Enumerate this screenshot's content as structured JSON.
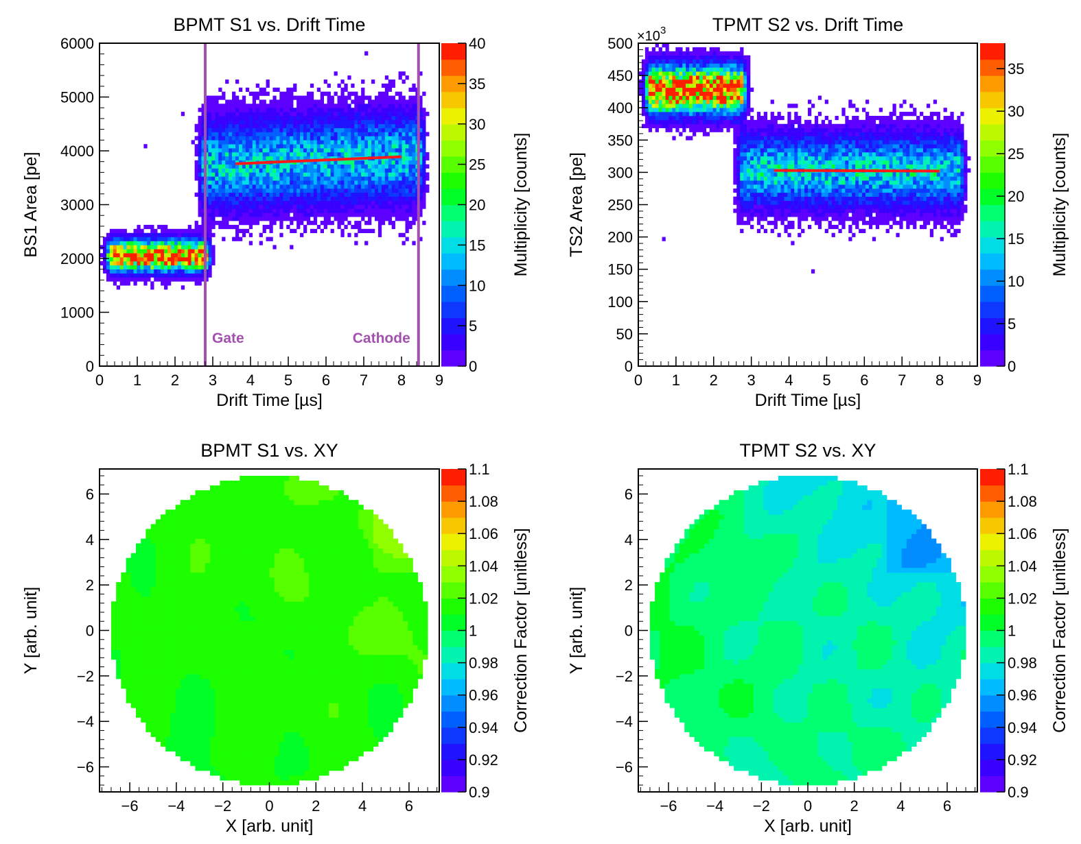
{
  "chart_data": [
    {
      "type": "heatmap",
      "title": "BPMT S1 vs. Drift Time",
      "xlabel": "Drift Time [µs]",
      "ylabel": "BS1 Area [pe]",
      "zlabel": "Multiplicity [counts]",
      "xlim": [
        0,
        9
      ],
      "ylim": [
        0,
        6000
      ],
      "zlim": [
        0,
        40
      ],
      "x_ticks": [
        "0",
        "1",
        "2",
        "3",
        "4",
        "5",
        "6",
        "7",
        "8",
        "9"
      ],
      "y_ticks": [
        "0",
        "1000",
        "2000",
        "3000",
        "4000",
        "5000",
        "6000"
      ],
      "z_ticks": [
        "0",
        "5",
        "10",
        "15",
        "20",
        "25",
        "30",
        "35",
        "40"
      ],
      "fit_line": {
        "x": [
          3.6,
          8.0
        ],
        "y": [
          3760,
          3890
        ]
      },
      "boundaries": [
        {
          "label": "Gate",
          "x": 2.8
        },
        {
          "label": "Cathode",
          "x": 8.45
        }
      ],
      "clusters": [
        {
          "x_range": [
            0.35,
            2.75
          ],
          "y_center": 2050,
          "y_sigma": 170,
          "peak_counts": 40
        },
        {
          "x_range": [
            2.8,
            8.45
          ],
          "y_center": 3800,
          "y_sigma": 480,
          "peak_counts": 14
        }
      ]
    },
    {
      "type": "heatmap",
      "title": "TPMT S2 vs. Drift Time",
      "xlabel": "Drift Time [µs]",
      "ylabel": "TS2 Area [pe]",
      "zlabel": "Multiplicity [counts]",
      "y_multiplier": "×10",
      "y_multiplier_exp": "3",
      "xlim": [
        0,
        9
      ],
      "ylim": [
        0,
        500
      ],
      "zlim": [
        0,
        38
      ],
      "x_ticks": [
        "0",
        "1",
        "2",
        "3",
        "4",
        "5",
        "6",
        "7",
        "8",
        "9"
      ],
      "y_ticks": [
        "0",
        "50",
        "100",
        "150",
        "200",
        "250",
        "300",
        "350",
        "400",
        "450",
        "500"
      ],
      "z_ticks": [
        "0",
        "5",
        "10",
        "15",
        "20",
        "25",
        "30",
        "35"
      ],
      "fit_line": {
        "x": [
          3.6,
          8.0
        ],
        "y": [
          303,
          302
        ]
      },
      "clusters": [
        {
          "x_range": [
            0.35,
            2.7
          ],
          "y_center": 428,
          "y_sigma": 22,
          "peak_counts": 38
        },
        {
          "x_range": [
            2.8,
            8.5
          ],
          "y_center": 300,
          "y_sigma": 33,
          "peak_counts": 14
        }
      ]
    },
    {
      "type": "heatmap",
      "title": "BPMT S1 vs. XY",
      "xlabel": "X [arb. unit]",
      "ylabel": "Y [arb. unit]",
      "zlabel": "Correction Factor [unitless]",
      "xlim": [
        -7.3,
        7.3
      ],
      "ylim": [
        -7.1,
        7.1
      ],
      "zlim": [
        0.9,
        1.1
      ],
      "x_ticks": [
        "−6",
        "−4",
        "−2",
        "0",
        "2",
        "4",
        "6"
      ],
      "y_ticks": [
        "−6",
        "−4",
        "−2",
        "0",
        "2",
        "4",
        "6"
      ],
      "z_ticks": [
        "0.9",
        "0.92",
        "0.94",
        "0.96",
        "0.98",
        "1",
        "1.02",
        "1.04",
        "1.06",
        "1.08",
        "1.1"
      ],
      "region": "disk radius 6.8",
      "mean_value": 1.015
    },
    {
      "type": "heatmap",
      "title": "TPMT S2 vs. XY",
      "xlabel": "X [arb. unit]",
      "ylabel": "Y [arb. unit]",
      "zlabel": "Correction Factor [unitless]",
      "xlim": [
        -7.3,
        7.3
      ],
      "ylim": [
        -7.1,
        7.1
      ],
      "zlim": [
        0.9,
        1.1
      ],
      "x_ticks": [
        "−6",
        "−4",
        "−2",
        "0",
        "2",
        "4",
        "6"
      ],
      "y_ticks": [
        "−6",
        "−4",
        "−2",
        "0",
        "2",
        "4",
        "6"
      ],
      "z_ticks": [
        "0.9",
        "0.92",
        "0.94",
        "0.96",
        "0.98",
        "1",
        "1.02",
        "1.04",
        "1.06",
        "1.08",
        "1.1"
      ],
      "region": "disk radius 6.8",
      "mean_value": 0.99
    }
  ]
}
